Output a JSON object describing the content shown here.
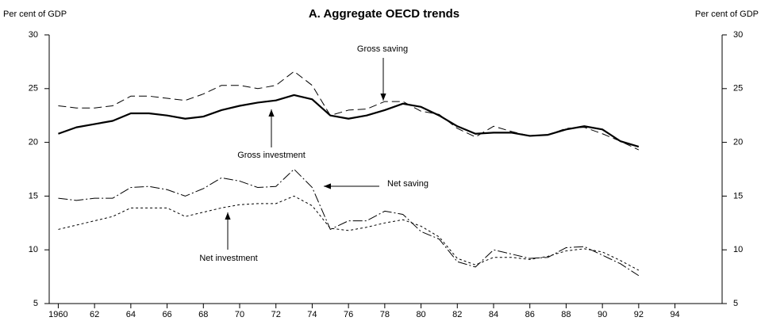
{
  "chart_data": {
    "type": "line",
    "title": "A. Aggregate OECD trends",
    "y_label": "Per cent of GDP",
    "y2_label": "Per cent of GDP",
    "x": [
      1960,
      1961,
      1962,
      1963,
      1964,
      1965,
      1966,
      1967,
      1968,
      1969,
      1970,
      1971,
      1972,
      1973,
      1974,
      1975,
      1976,
      1977,
      1978,
      1979,
      1980,
      1981,
      1982,
      1983,
      1984,
      1985,
      1986,
      1987,
      1988,
      1989,
      1990,
      1991,
      1992
    ],
    "xlim": [
      1959.5,
      1996.6
    ],
    "xticks": [
      1960,
      {
        "value": 1962,
        "label": "62"
      },
      {
        "value": 1964,
        "label": "64"
      },
      {
        "value": 1966,
        "label": "66"
      },
      {
        "value": 1968,
        "label": "68"
      },
      {
        "value": 1970,
        "label": "70"
      },
      {
        "value": 1972,
        "label": "72"
      },
      {
        "value": 1974,
        "label": "74"
      },
      {
        "value": 1976,
        "label": "76"
      },
      {
        "value": 1978,
        "label": "78"
      },
      {
        "value": 1980,
        "label": "80"
      },
      {
        "value": 1982,
        "label": "82"
      },
      {
        "value": 1984,
        "label": "84"
      },
      {
        "value": 1986,
        "label": "86"
      },
      {
        "value": 1988,
        "label": "88"
      },
      {
        "value": 1990,
        "label": "90"
      },
      {
        "value": 1992,
        "label": "92"
      },
      {
        "value": 1994,
        "label": "94"
      }
    ],
    "ylim": [
      5,
      30
    ],
    "yticks": [
      5,
      10,
      15,
      20,
      25,
      30
    ],
    "y2lim": [
      5,
      30
    ],
    "y2ticks": [
      5,
      10,
      15,
      20,
      25,
      30
    ],
    "series": [
      {
        "name": "Gross saving",
        "color": "#000000",
        "line_style": "dashed",
        "values": [
          23.4,
          23.2,
          23.2,
          23.4,
          24.3,
          24.3,
          24.1,
          23.9,
          24.5,
          25.3,
          25.3,
          25.0,
          25.3,
          26.6,
          25.3,
          22.5,
          23.0,
          23.1,
          23.8,
          23.8,
          22.9,
          22.6,
          21.3,
          20.5,
          21.5,
          21.0,
          20.6,
          20.7,
          21.3,
          21.4,
          20.8,
          20.1,
          19.3
        ]
      },
      {
        "name": "Gross investment",
        "color": "#000000",
        "line_style": "thick",
        "values": [
          20.8,
          21.4,
          21.7,
          22.0,
          22.7,
          22.7,
          22.5,
          22.2,
          22.4,
          23.0,
          23.4,
          23.7,
          23.9,
          24.4,
          24.0,
          22.5,
          22.2,
          22.5,
          23.0,
          23.6,
          23.3,
          22.5,
          21.5,
          20.8,
          20.9,
          20.9,
          20.6,
          20.7,
          21.2,
          21.5,
          21.2,
          20.1,
          19.6
        ]
      },
      {
        "name": "Net saving",
        "color": "#000000",
        "line_style": "dashdot",
        "values": [
          14.8,
          14.6,
          14.8,
          14.8,
          15.8,
          15.9,
          15.6,
          15.0,
          15.7,
          16.7,
          16.4,
          15.8,
          15.9,
          17.5,
          15.8,
          11.9,
          12.7,
          12.7,
          13.6,
          13.3,
          11.7,
          11.0,
          8.9,
          8.4,
          10.0,
          9.6,
          9.2,
          9.3,
          10.2,
          10.3,
          9.5,
          8.7,
          7.6
        ]
      },
      {
        "name": "Net investment",
        "color": "#000000",
        "line_style": "dotted",
        "values": [
          11.9,
          12.3,
          12.7,
          13.1,
          13.9,
          13.9,
          13.9,
          13.1,
          13.5,
          13.9,
          14.2,
          14.3,
          14.3,
          15.0,
          14.1,
          12.0,
          11.8,
          12.1,
          12.5,
          12.8,
          12.2,
          11.2,
          9.2,
          8.6,
          9.3,
          9.3,
          9.1,
          9.4,
          9.9,
          10.1,
          9.8,
          9.0,
          8.1
        ]
      }
    ]
  }
}
